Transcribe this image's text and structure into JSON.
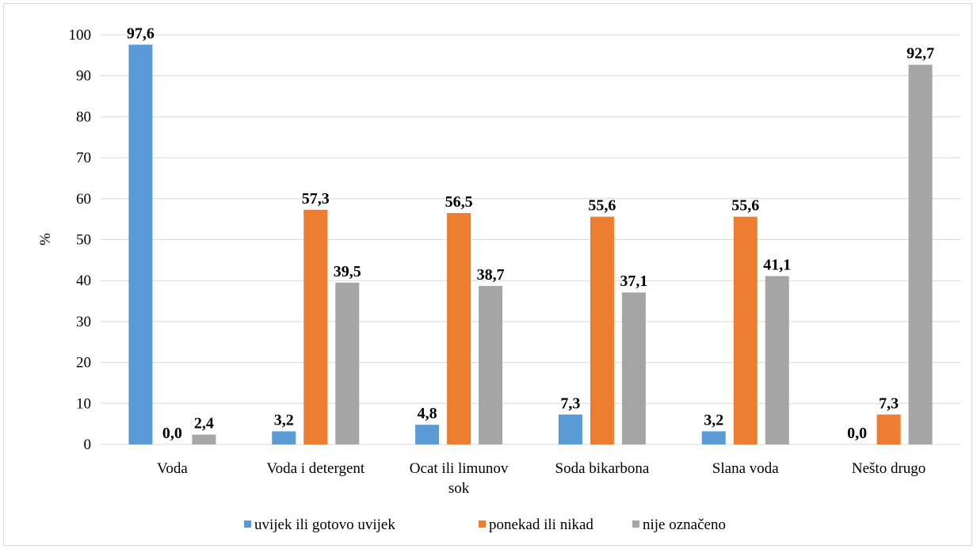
{
  "chart_data": {
    "type": "bar",
    "title": "",
    "xlabel": "",
    "ylabel": "%",
    "ylim": [
      0,
      100
    ],
    "yticks": [
      "0",
      "10",
      "20",
      "30",
      "40",
      "50",
      "60",
      "70",
      "80",
      "90",
      "100"
    ],
    "categories": [
      [
        "Voda"
      ],
      [
        "Voda i detergent"
      ],
      [
        "Ocat ili limunov",
        "sok"
      ],
      [
        "Soda bikarbona"
      ],
      [
        "Slana voda"
      ],
      [
        "Nešto drugo"
      ]
    ],
    "series": [
      {
        "name": "uvijek ili gotovo uvijek",
        "color": "#5b9bd5",
        "values": [
          97.6,
          3.2,
          4.8,
          7.3,
          3.2,
          0.0
        ],
        "labels": [
          "97,6",
          "3,2",
          "4,8",
          "7,3",
          "3,2",
          "0,0"
        ]
      },
      {
        "name": "ponekad ili nikad",
        "color": "#ed7d31",
        "values": [
          0.0,
          57.3,
          56.5,
          55.6,
          55.6,
          7.3
        ],
        "labels": [
          "0,0",
          "57,3",
          "56,5",
          "55,6",
          "55,6",
          "7,3"
        ]
      },
      {
        "name": "nije označeno",
        "color": "#a5a5a5",
        "values": [
          2.4,
          39.5,
          38.7,
          37.1,
          41.1,
          92.7
        ],
        "labels": [
          "2,4",
          "39,5",
          "38,7",
          "37,1",
          "41,1",
          "92,7"
        ]
      }
    ],
    "grid": true,
    "legend_position": "bottom"
  }
}
